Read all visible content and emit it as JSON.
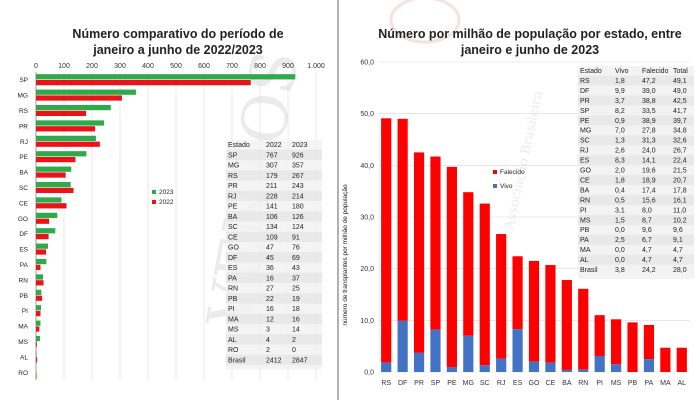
{
  "chart_data": [
    {
      "type": "bar",
      "title_lines": [
        "Número comparativo do período de",
        "janeiro a junho de 2022/2023"
      ],
      "orientation": "horizontal",
      "xlim": [
        0,
        1000
      ],
      "x_ticks": [
        "0",
        "100",
        "200",
        "300",
        "400",
        "500",
        "600",
        "700",
        "800",
        "900",
        "1.000"
      ],
      "categories": [
        "SP",
        "MG",
        "RS",
        "PR",
        "RJ",
        "PE",
        "BA",
        "SC",
        "CE",
        "GO",
        "DF",
        "ES",
        "PA",
        "RN",
        "PB",
        "PI",
        "MA",
        "MS",
        "AL",
        "RO"
      ],
      "series": [
        {
          "name": "2023",
          "color": "#2eaa4a",
          "values": [
            926,
            357,
            267,
            243,
            214,
            180,
            126,
            124,
            91,
            76,
            69,
            43,
            37,
            25,
            19,
            18,
            16,
            14,
            2,
            0
          ]
        },
        {
          "name": "2022",
          "color": "#e8141a",
          "values": [
            767,
            307,
            179,
            211,
            228,
            141,
            106,
            134,
            109,
            47,
            45,
            36,
            16,
            27,
            22,
            16,
            12,
            3,
            4,
            2
          ]
        }
      ],
      "legend_position": "right",
      "table": {
        "headers": [
          "Estado",
          "2022",
          "2023"
        ],
        "rows": [
          [
            "SP",
            "767",
            "926"
          ],
          [
            "MG",
            "307",
            "357"
          ],
          [
            "RS",
            "179",
            "267"
          ],
          [
            "PR",
            "211",
            "243"
          ],
          [
            "RJ",
            "228",
            "214"
          ],
          [
            "PE",
            "141",
            "180"
          ],
          [
            "BA",
            "106",
            "126"
          ],
          [
            "SC",
            "134",
            "124"
          ],
          [
            "CE",
            "109",
            "91"
          ],
          [
            "GO",
            "47",
            "76"
          ],
          [
            "DF",
            "45",
            "69"
          ],
          [
            "ES",
            "36",
            "43"
          ],
          [
            "PA",
            "16",
            "37"
          ],
          [
            "RN",
            "27",
            "25"
          ],
          [
            "PB",
            "22",
            "19"
          ],
          [
            "PI",
            "16",
            "18"
          ],
          [
            "MA",
            "12",
            "16"
          ],
          [
            "MS",
            "3",
            "14"
          ],
          [
            "AL",
            "4",
            "2"
          ],
          [
            "RO",
            "2",
            "0"
          ],
          [
            "Brasil",
            "2412",
            "2847"
          ]
        ]
      }
    },
    {
      "type": "bar",
      "stacked": true,
      "title_lines": [
        "Número por milhão de população por estado, entre",
        "janeiro e junho de 2023"
      ],
      "ylabel": "número de transplantes por milhão de população",
      "ylim": [
        0,
        60
      ],
      "y_ticks": [
        "0,0",
        "10,0",
        "20,0",
        "30,0",
        "40,0",
        "50,0",
        "60,0"
      ],
      "categories": [
        "RS",
        "DF",
        "PR",
        "SP",
        "PE",
        "MG",
        "SC",
        "RJ",
        "ES",
        "GO",
        "CE",
        "BA",
        "RN",
        "PI",
        "MS",
        "PB",
        "PA",
        "MA",
        "AL"
      ],
      "series": [
        {
          "name": "Vivo",
          "color": "#4472c4",
          "values": [
            1.8,
            9.9,
            3.7,
            8.2,
            0.9,
            7.0,
            1.3,
            2.6,
            8.3,
            2.0,
            1.8,
            0.4,
            0.5,
            3.1,
            1.5,
            0.0,
            2.5,
            0.0,
            0.0
          ]
        },
        {
          "name": "Falecido",
          "color": "#ff0000",
          "values": [
            47.2,
            39.0,
            38.8,
            33.5,
            38.9,
            27.8,
            31.3,
            24.0,
            14.1,
            19.6,
            18.9,
            17.4,
            15.6,
            8.0,
            8.7,
            9.6,
            6.7,
            4.7,
            4.7
          ]
        }
      ],
      "totals": [
        49.1,
        49.0,
        42.5,
        41.7,
        39.7,
        34.8,
        32.6,
        26.7,
        22.4,
        21.5,
        20.7,
        17.8,
        16.1,
        11.0,
        10.2,
        9.6,
        9.1,
        4.7,
        4.7
      ],
      "legend_position": "middle-right",
      "table": {
        "headers": [
          "Estado",
          "Vivo",
          "Falecido",
          "Total"
        ],
        "rows": [
          [
            "RS",
            "1,8",
            "47,2",
            "49,1"
          ],
          [
            "DF",
            "9,9",
            "39,0",
            "49,0"
          ],
          [
            "PR",
            "3,7",
            "38,8",
            "42,5"
          ],
          [
            "SP",
            "8,2",
            "33,5",
            "41,7"
          ],
          [
            "PE",
            "0,9",
            "38,9",
            "39,7"
          ],
          [
            "MG",
            "7,0",
            "27,8",
            "34,8"
          ],
          [
            "SC",
            "1,3",
            "31,3",
            "32,6"
          ],
          [
            "RJ",
            "2,6",
            "24,0",
            "26,7"
          ],
          [
            "ES",
            "8,3",
            "14,1",
            "22,4"
          ],
          [
            "GO",
            "2,0",
            "19,6",
            "21,5"
          ],
          [
            "CE",
            "1,8",
            "18,9",
            "20,7"
          ],
          [
            "BA",
            "0,4",
            "17,4",
            "17,8"
          ],
          [
            "RN",
            "0,5",
            "15,6",
            "16,1"
          ],
          [
            "PI",
            "3,1",
            "8,0",
            "11,0"
          ],
          [
            "MS",
            "1,5",
            "8,7",
            "10,2"
          ],
          [
            "PB",
            "0,0",
            "9,6",
            "9,6"
          ],
          [
            "PA",
            "2,5",
            "6,7",
            "9,1"
          ],
          [
            "MA",
            "0,0",
            "4,7",
            "4,7"
          ],
          [
            "AL",
            "0,0",
            "4,7",
            "4,7"
          ],
          [
            "Brasil",
            "3,8",
            "24,2",
            "28,0"
          ]
        ]
      }
    }
  ],
  "watermark": {
    "left_text": "VENTOS",
    "right_text": "Associação Brasileira"
  }
}
